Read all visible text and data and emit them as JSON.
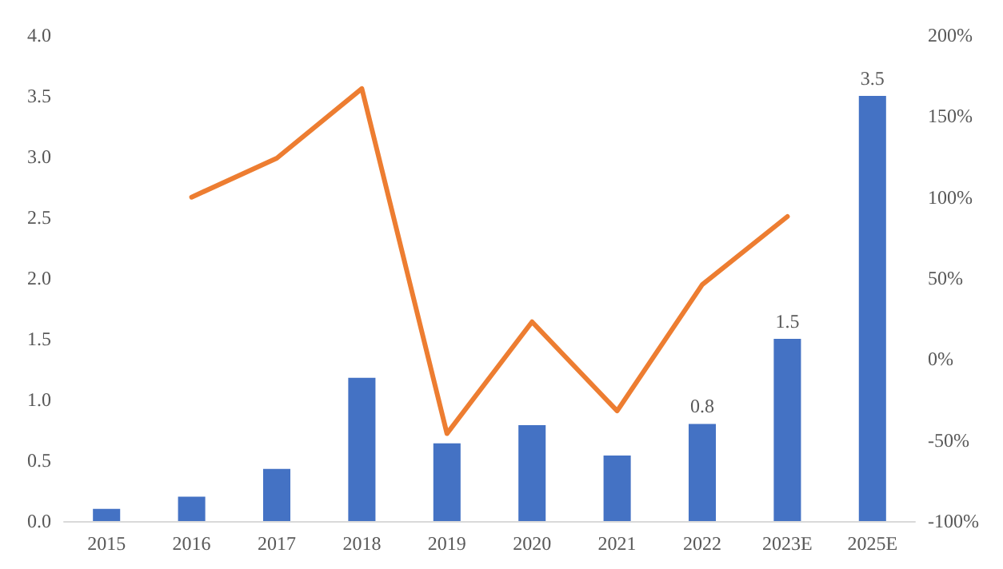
{
  "chart_data": {
    "type": "bar",
    "categories": [
      "2015",
      "2016",
      "2017",
      "2018",
      "2019",
      "2020",
      "2021",
      "2022",
      "2023E",
      "2025E"
    ],
    "series": [
      {
        "color": "#4472c4",
        "values": [
          0.1,
          0.2,
          0.43,
          1.18,
          0.64,
          0.79,
          0.54,
          0.8,
          1.5,
          3.5
        ],
        "value_labels": [
          null,
          null,
          null,
          null,
          null,
          null,
          null,
          "0.8",
          "1.5",
          "3.5"
        ]
      },
      {
        "type": "line",
        "axis": "y2",
        "color": "#ed7d31",
        "values": [
          null,
          100,
          124,
          167,
          -46,
          23,
          -32,
          46,
          88,
          null
        ]
      }
    ],
    "ylim": [
      0,
      4
    ],
    "yticks": [
      {
        "value": 0,
        "label": "0.0"
      },
      {
        "value": 0.5,
        "label": "0.5"
      },
      {
        "value": 1,
        "label": "1.0"
      },
      {
        "value": 1.5,
        "label": "1.5"
      },
      {
        "value": 2,
        "label": "2.0"
      },
      {
        "value": 2.5,
        "label": "2.5"
      },
      {
        "value": 3,
        "label": "3.0"
      },
      {
        "value": 3.5,
        "label": "3.5"
      },
      {
        "value": 4,
        "label": "4.0"
      }
    ],
    "y2lim": [
      -100,
      200
    ],
    "y2ticks": [
      {
        "value": -100,
        "label": "-100%"
      },
      {
        "value": -50,
        "label": "-50%"
      },
      {
        "value": 0,
        "label": "0%"
      },
      {
        "value": 50,
        "label": "50%"
      },
      {
        "value": 100,
        "label": "100%"
      },
      {
        "value": 150,
        "label": "150%"
      },
      {
        "value": 200,
        "label": "200%"
      }
    ],
    "grid": false,
    "marker": "none",
    "line_style": "solid"
  }
}
